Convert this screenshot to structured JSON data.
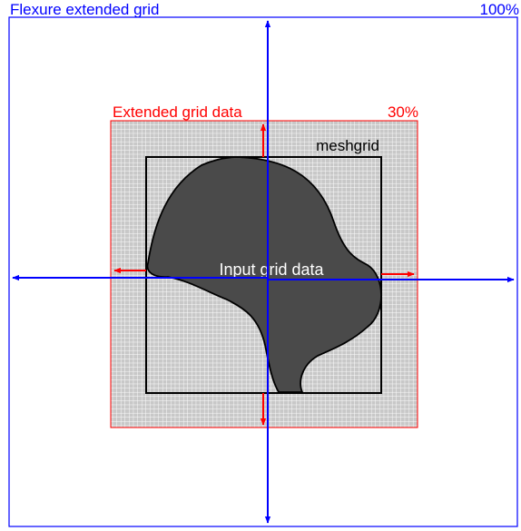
{
  "outer": {
    "title": "Flexure extended grid",
    "percent": "100%",
    "color": "#0000ff"
  },
  "extended": {
    "title": "Extended grid data",
    "percent": "30%",
    "color": "#ff0000",
    "grid_fill": "#c8c8c8",
    "grid_line": "#ffffff"
  },
  "meshgrid": {
    "label": "meshgrid",
    "color": "#000000"
  },
  "input": {
    "label": "Input grid data",
    "fill": "#4a4a4a",
    "text_color": "#ffffff"
  }
}
